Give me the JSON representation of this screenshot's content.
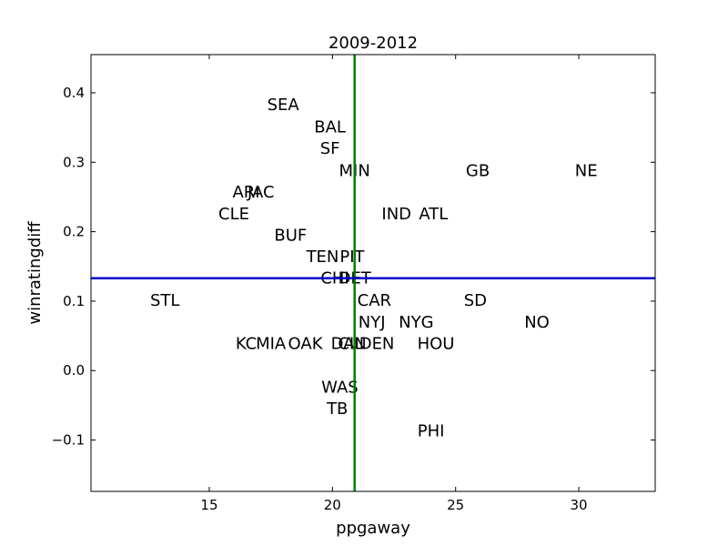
{
  "chart_data": {
    "type": "scatter",
    "title": "2009-2012",
    "xlabel": "ppgaway",
    "ylabel": "winratingdiff",
    "xlim": [
      10.2,
      33.1
    ],
    "ylim": [
      -0.174,
      0.455
    ],
    "xticks": [
      15,
      20,
      25,
      30
    ],
    "yticks": [
      -0.1,
      0.0,
      0.1,
      0.2,
      0.3,
      0.4
    ],
    "ytick_labels": [
      "−0.1",
      "0.0",
      "0.1",
      "0.2",
      "0.3",
      "0.4"
    ],
    "grid": false,
    "reference_lines": [
      {
        "orientation": "vertical",
        "value": 20.9,
        "color": "#008000"
      },
      {
        "orientation": "horizontal",
        "value": 0.133,
        "color": "#0000cc"
      }
    ],
    "points": [
      {
        "label": "SEA",
        "x": 18.0,
        "y": 0.383
      },
      {
        "label": "BAL",
        "x": 19.9,
        "y": 0.351
      },
      {
        "label": "SF",
        "x": 19.9,
        "y": 0.32
      },
      {
        "label": "MIN",
        "x": 20.9,
        "y": 0.288
      },
      {
        "label": "GB",
        "x": 25.9,
        "y": 0.288
      },
      {
        "label": "NE",
        "x": 30.3,
        "y": 0.288
      },
      {
        "label": "ARI",
        "x": 16.5,
        "y": 0.257
      },
      {
        "label": "JAC",
        "x": 17.1,
        "y": 0.257
      },
      {
        "label": "CLE",
        "x": 16.0,
        "y": 0.226
      },
      {
        "label": "IND",
        "x": 22.6,
        "y": 0.226
      },
      {
        "label": "ATL",
        "x": 24.1,
        "y": 0.226
      },
      {
        "label": "BUF",
        "x": 18.3,
        "y": 0.195
      },
      {
        "label": "TEN",
        "x": 19.6,
        "y": 0.164
      },
      {
        "label": "PIT",
        "x": 20.8,
        "y": 0.164
      },
      {
        "label": "CHI",
        "x": 20.1,
        "y": 0.133
      },
      {
        "label": "DET",
        "x": 20.9,
        "y": 0.133
      },
      {
        "label": "STL",
        "x": 13.2,
        "y": 0.101
      },
      {
        "label": "CAR",
        "x": 21.7,
        "y": 0.101
      },
      {
        "label": "SD",
        "x": 25.8,
        "y": 0.101
      },
      {
        "label": "NYJ",
        "x": 21.6,
        "y": 0.07
      },
      {
        "label": "NYG",
        "x": 23.4,
        "y": 0.07
      },
      {
        "label": "NO",
        "x": 28.3,
        "y": 0.07
      },
      {
        "label": "KC",
        "x": 16.5,
        "y": 0.039
      },
      {
        "label": "MIA",
        "x": 17.5,
        "y": 0.039
      },
      {
        "label": "OAK",
        "x": 18.9,
        "y": 0.039
      },
      {
        "label": "DAL",
        "x": 20.6,
        "y": 0.039
      },
      {
        "label": "CIN",
        "x": 20.8,
        "y": 0.039
      },
      {
        "label": "DEN",
        "x": 21.8,
        "y": 0.039
      },
      {
        "label": "HOU",
        "x": 24.2,
        "y": 0.039
      },
      {
        "label": "WAS",
        "x": 20.3,
        "y": -0.024
      },
      {
        "label": "TB",
        "x": 20.2,
        "y": -0.055
      },
      {
        "label": "PHI",
        "x": 24.0,
        "y": -0.087
      }
    ]
  }
}
